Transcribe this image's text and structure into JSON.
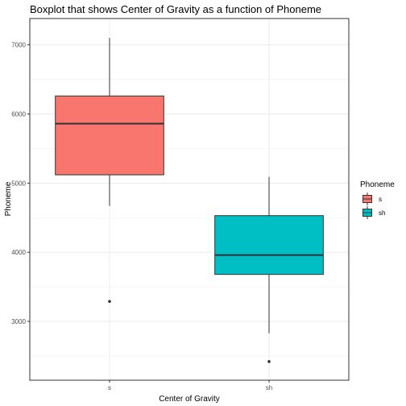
{
  "chart_data": {
    "type": "boxplot",
    "title": "Boxplot that shows Center of Gravity as a function of Phoneme",
    "xlabel": "Center of Gravity",
    "ylabel": "Phoneme",
    "categories": [
      "s",
      "sh"
    ],
    "ylim": [
      2150,
      7380
    ],
    "yticks": [
      3000,
      4000,
      5000,
      6000,
      7000
    ],
    "grid": true,
    "legend": {
      "title": "Phoneme",
      "position": "right",
      "entries": [
        {
          "label": "s",
          "color": "#F8766D"
        },
        {
          "label": "sh",
          "color": "#00BFC4"
        }
      ]
    },
    "boxes": [
      {
        "category": "s",
        "color": "#F8766D",
        "whisker_low": 4670,
        "q1": 5120,
        "median": 5860,
        "q3": 6260,
        "whisker_high": 7100,
        "outliers": [
          3290
        ]
      },
      {
        "category": "sh",
        "color": "#00BFC4",
        "whisker_low": 2830,
        "q1": 3680,
        "median": 3960,
        "q3": 4530,
        "whisker_high": 5090,
        "outliers": [
          2420
        ]
      }
    ]
  }
}
